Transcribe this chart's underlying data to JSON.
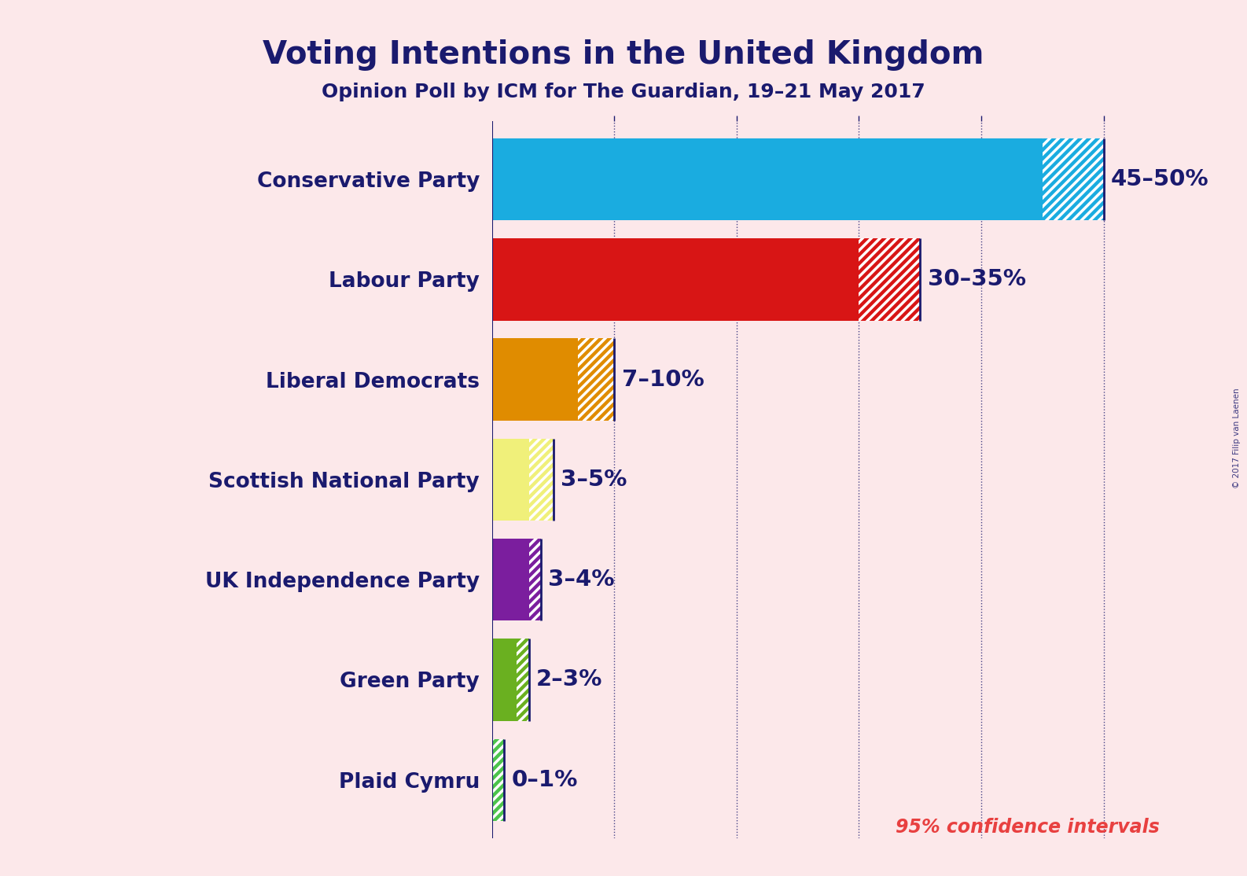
{
  "title": "Voting Intentions in the United Kingdom",
  "subtitle": "Opinion Poll by ICM for The Guardian, 19–21 May 2017",
  "watermark": "© 2017 Filip van Laenen",
  "confidence_label": "95% confidence intervals",
  "background_color": "#fce8ea",
  "title_color": "#1a1a6e",
  "subtitle_color": "#1a1a6e",
  "parties": [
    "Conservative Party",
    "Labour Party",
    "Liberal Democrats",
    "Scottish National Party",
    "UK Independence Party",
    "Green Party",
    "Plaid Cymru"
  ],
  "lower_values": [
    45,
    30,
    7,
    3,
    3,
    2,
    0
  ],
  "upper_values": [
    50,
    35,
    10,
    5,
    4,
    3,
    1
  ],
  "colors": [
    "#1aace0",
    "#d81515",
    "#e08c00",
    "#f0f07a",
    "#7b1e9e",
    "#6ab020",
    "#4cc44c"
  ],
  "labels": [
    "45–50%",
    "30–35%",
    "7–10%",
    "3–5%",
    "3–4%",
    "2–3%",
    "0–1%"
  ],
  "xlim": [
    0,
    55
  ],
  "bar_height": 0.82,
  "grid_color": "#1a1a6e",
  "hatch_pattern": "///",
  "label_color": "#1a1a6e",
  "party_label_color": "#1a1a6e",
  "upper_line_color": "#1a1a6e",
  "confidence_label_color": "#e84040"
}
